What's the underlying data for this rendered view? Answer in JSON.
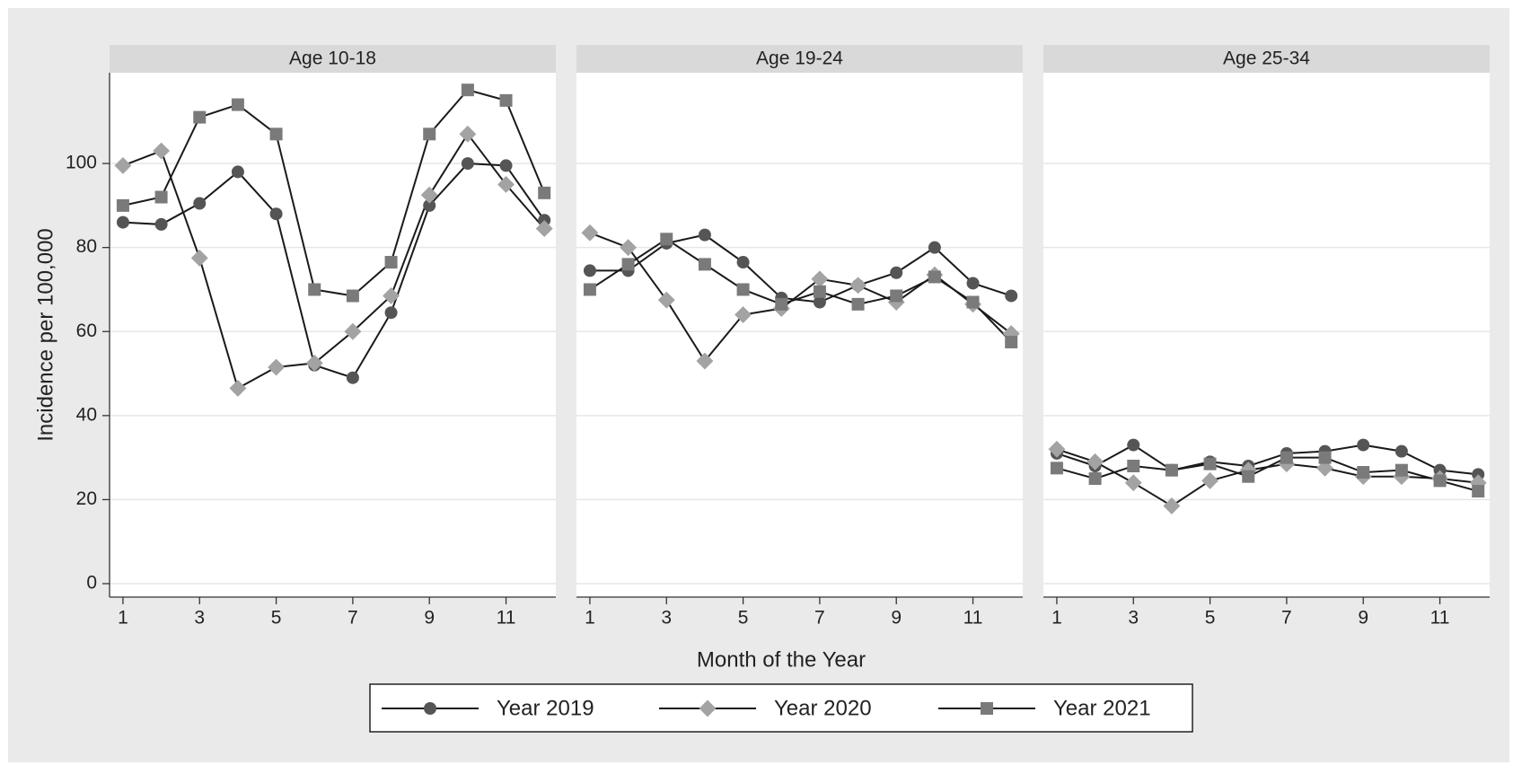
{
  "chart_data": {
    "type": "line",
    "y_label": "Incidence per 100,000",
    "x_label": "Month of the Year",
    "x": [
      1,
      2,
      3,
      4,
      5,
      6,
      7,
      8,
      9,
      10,
      11,
      12
    ],
    "xlim": [
      0.65,
      12.3
    ],
    "xticks": [
      1,
      3,
      5,
      7,
      9,
      11
    ],
    "ylim": [
      -3.2,
      121.6
    ],
    "yticks": [
      0,
      20,
      40,
      60,
      80,
      100
    ],
    "grid": true,
    "series": [
      {
        "name": "Year 2019",
        "color": "#555555",
        "marker": "circle"
      },
      {
        "name": "Year 2020",
        "color": "#a3a3a3",
        "marker": "diamond"
      },
      {
        "name": "Year 2021",
        "color": "#7a7a7a",
        "marker": "square"
      }
    ],
    "panels": [
      {
        "title": "Age 10-18",
        "values": [
          [
            86,
            85.5,
            90.5,
            98,
            88,
            52,
            49,
            64.5,
            90,
            100,
            99.5,
            86.5
          ],
          [
            99.5,
            103,
            77.5,
            46.5,
            51.5,
            52.5,
            60,
            68.5,
            92.5,
            107,
            95,
            84.5
          ],
          [
            90,
            92,
            111,
            114,
            107,
            70,
            68.5,
            76.5,
            107,
            117.5,
            115,
            93
          ]
        ]
      },
      {
        "title": "Age 19-24",
        "values": [
          [
            74.5,
            74.5,
            81,
            83,
            76.5,
            68,
            67,
            71,
            74,
            80,
            71.5,
            68.5
          ],
          [
            83.5,
            80,
            67.5,
            53,
            64,
            65.5,
            72.5,
            71,
            67,
            73.5,
            66.5,
            59.5
          ],
          [
            70,
            76,
            82,
            76,
            70,
            66.5,
            69.5,
            66.5,
            68.5,
            73,
            67,
            57.5
          ]
        ]
      },
      {
        "title": "Age 25-34",
        "values": [
          [
            31,
            28,
            33,
            27,
            29,
            28,
            31,
            31.5,
            33,
            31.5,
            27,
            26
          ],
          [
            32,
            29,
            24,
            18.5,
            24.5,
            27,
            28.5,
            27.5,
            25.5,
            25.5,
            25,
            24
          ],
          [
            27.5,
            25,
            28,
            27,
            28.5,
            25.5,
            30,
            30,
            26.5,
            27,
            24.5,
            22
          ]
        ]
      }
    ]
  }
}
